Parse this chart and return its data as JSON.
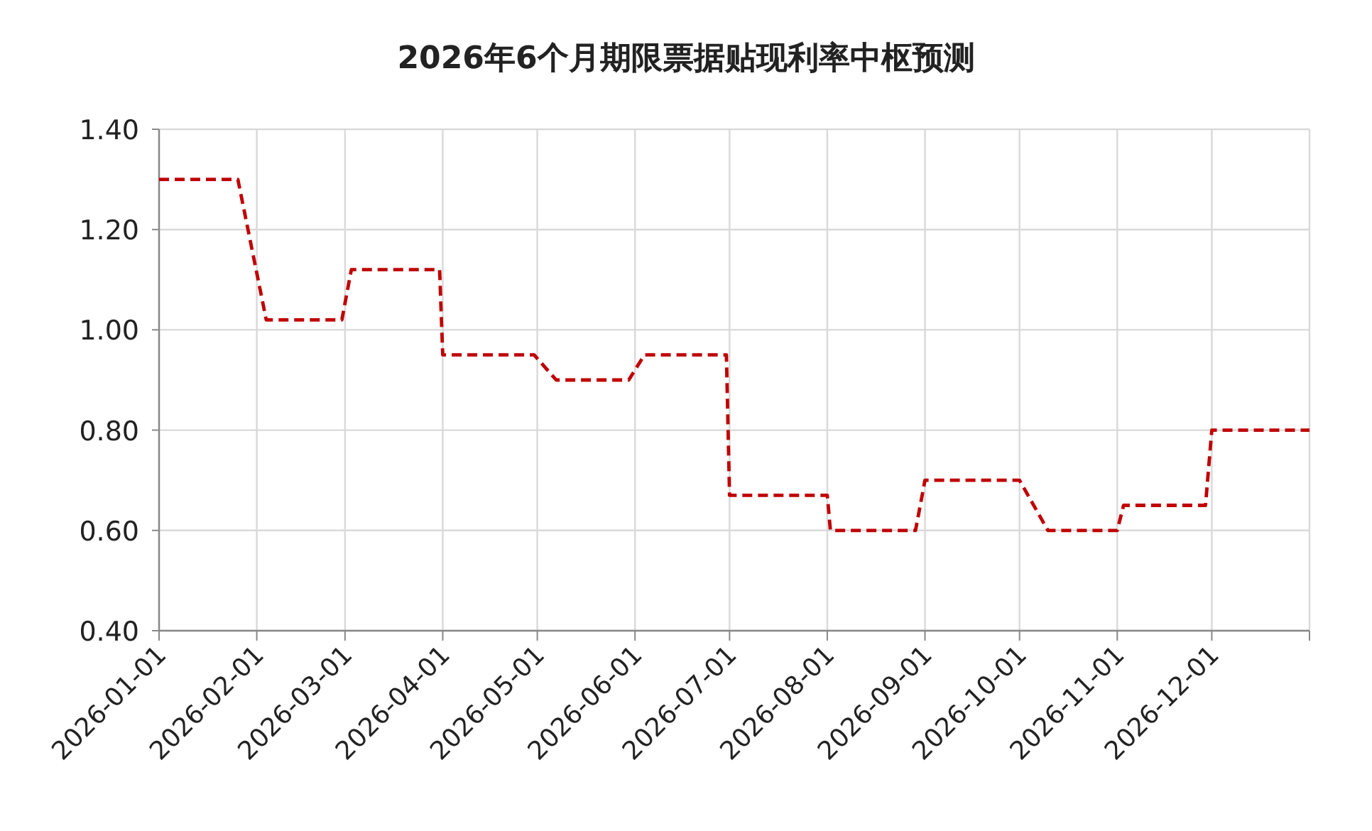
{
  "chart_data": {
    "type": "line",
    "title": "2026年6个月期限票据贴现利率中枢预测",
    "x": [
      "2026-01-01",
      "2026-01-26",
      "2026-02-04",
      "2026-02-28",
      "2026-03-03",
      "2026-03-31",
      "2026-04-01",
      "2026-04-30",
      "2026-05-07",
      "2026-05-30",
      "2026-06-04",
      "2026-06-30",
      "2026-07-01",
      "2026-08-01",
      "2026-08-02",
      "2026-08-29",
      "2026-09-01",
      "2026-10-01",
      "2026-10-10",
      "2026-11-01",
      "2026-11-03",
      "2026-11-29",
      "2026-12-01",
      "2027-01-01"
    ],
    "values": [
      1.3,
      1.3,
      1.02,
      1.02,
      1.12,
      1.12,
      0.95,
      0.95,
      0.9,
      0.9,
      0.95,
      0.95,
      0.67,
      0.67,
      0.6,
      0.6,
      0.7,
      0.7,
      0.6,
      0.6,
      0.65,
      0.65,
      0.8,
      0.8
    ],
    "color": "#c00000",
    "line_style": "dashed",
    "grid": true,
    "xlim": [
      "2026-01-01",
      "2027-01-01"
    ],
    "xticks": [
      "2026-01-01",
      "2026-02-01",
      "2026-03-01",
      "2026-04-01",
      "2026-05-01",
      "2026-06-01",
      "2026-07-01",
      "2026-08-01",
      "2026-09-01",
      "2026-10-01",
      "2026-11-01",
      "2026-12-01",
      {
        "value": "2027-01-01",
        "label": null
      }
    ],
    "ylim": [
      0.4,
      1.4
    ],
    "yticks": [
      {
        "value": 0.4,
        "label": "0.40"
      },
      {
        "value": 0.6,
        "label": "0.60"
      },
      {
        "value": 0.8,
        "label": "0.80"
      },
      {
        "value": 1.0,
        "label": "1.00"
      },
      {
        "value": 1.2,
        "label": "1.20"
      },
      {
        "value": 1.4,
        "label": "1.40"
      }
    ]
  }
}
